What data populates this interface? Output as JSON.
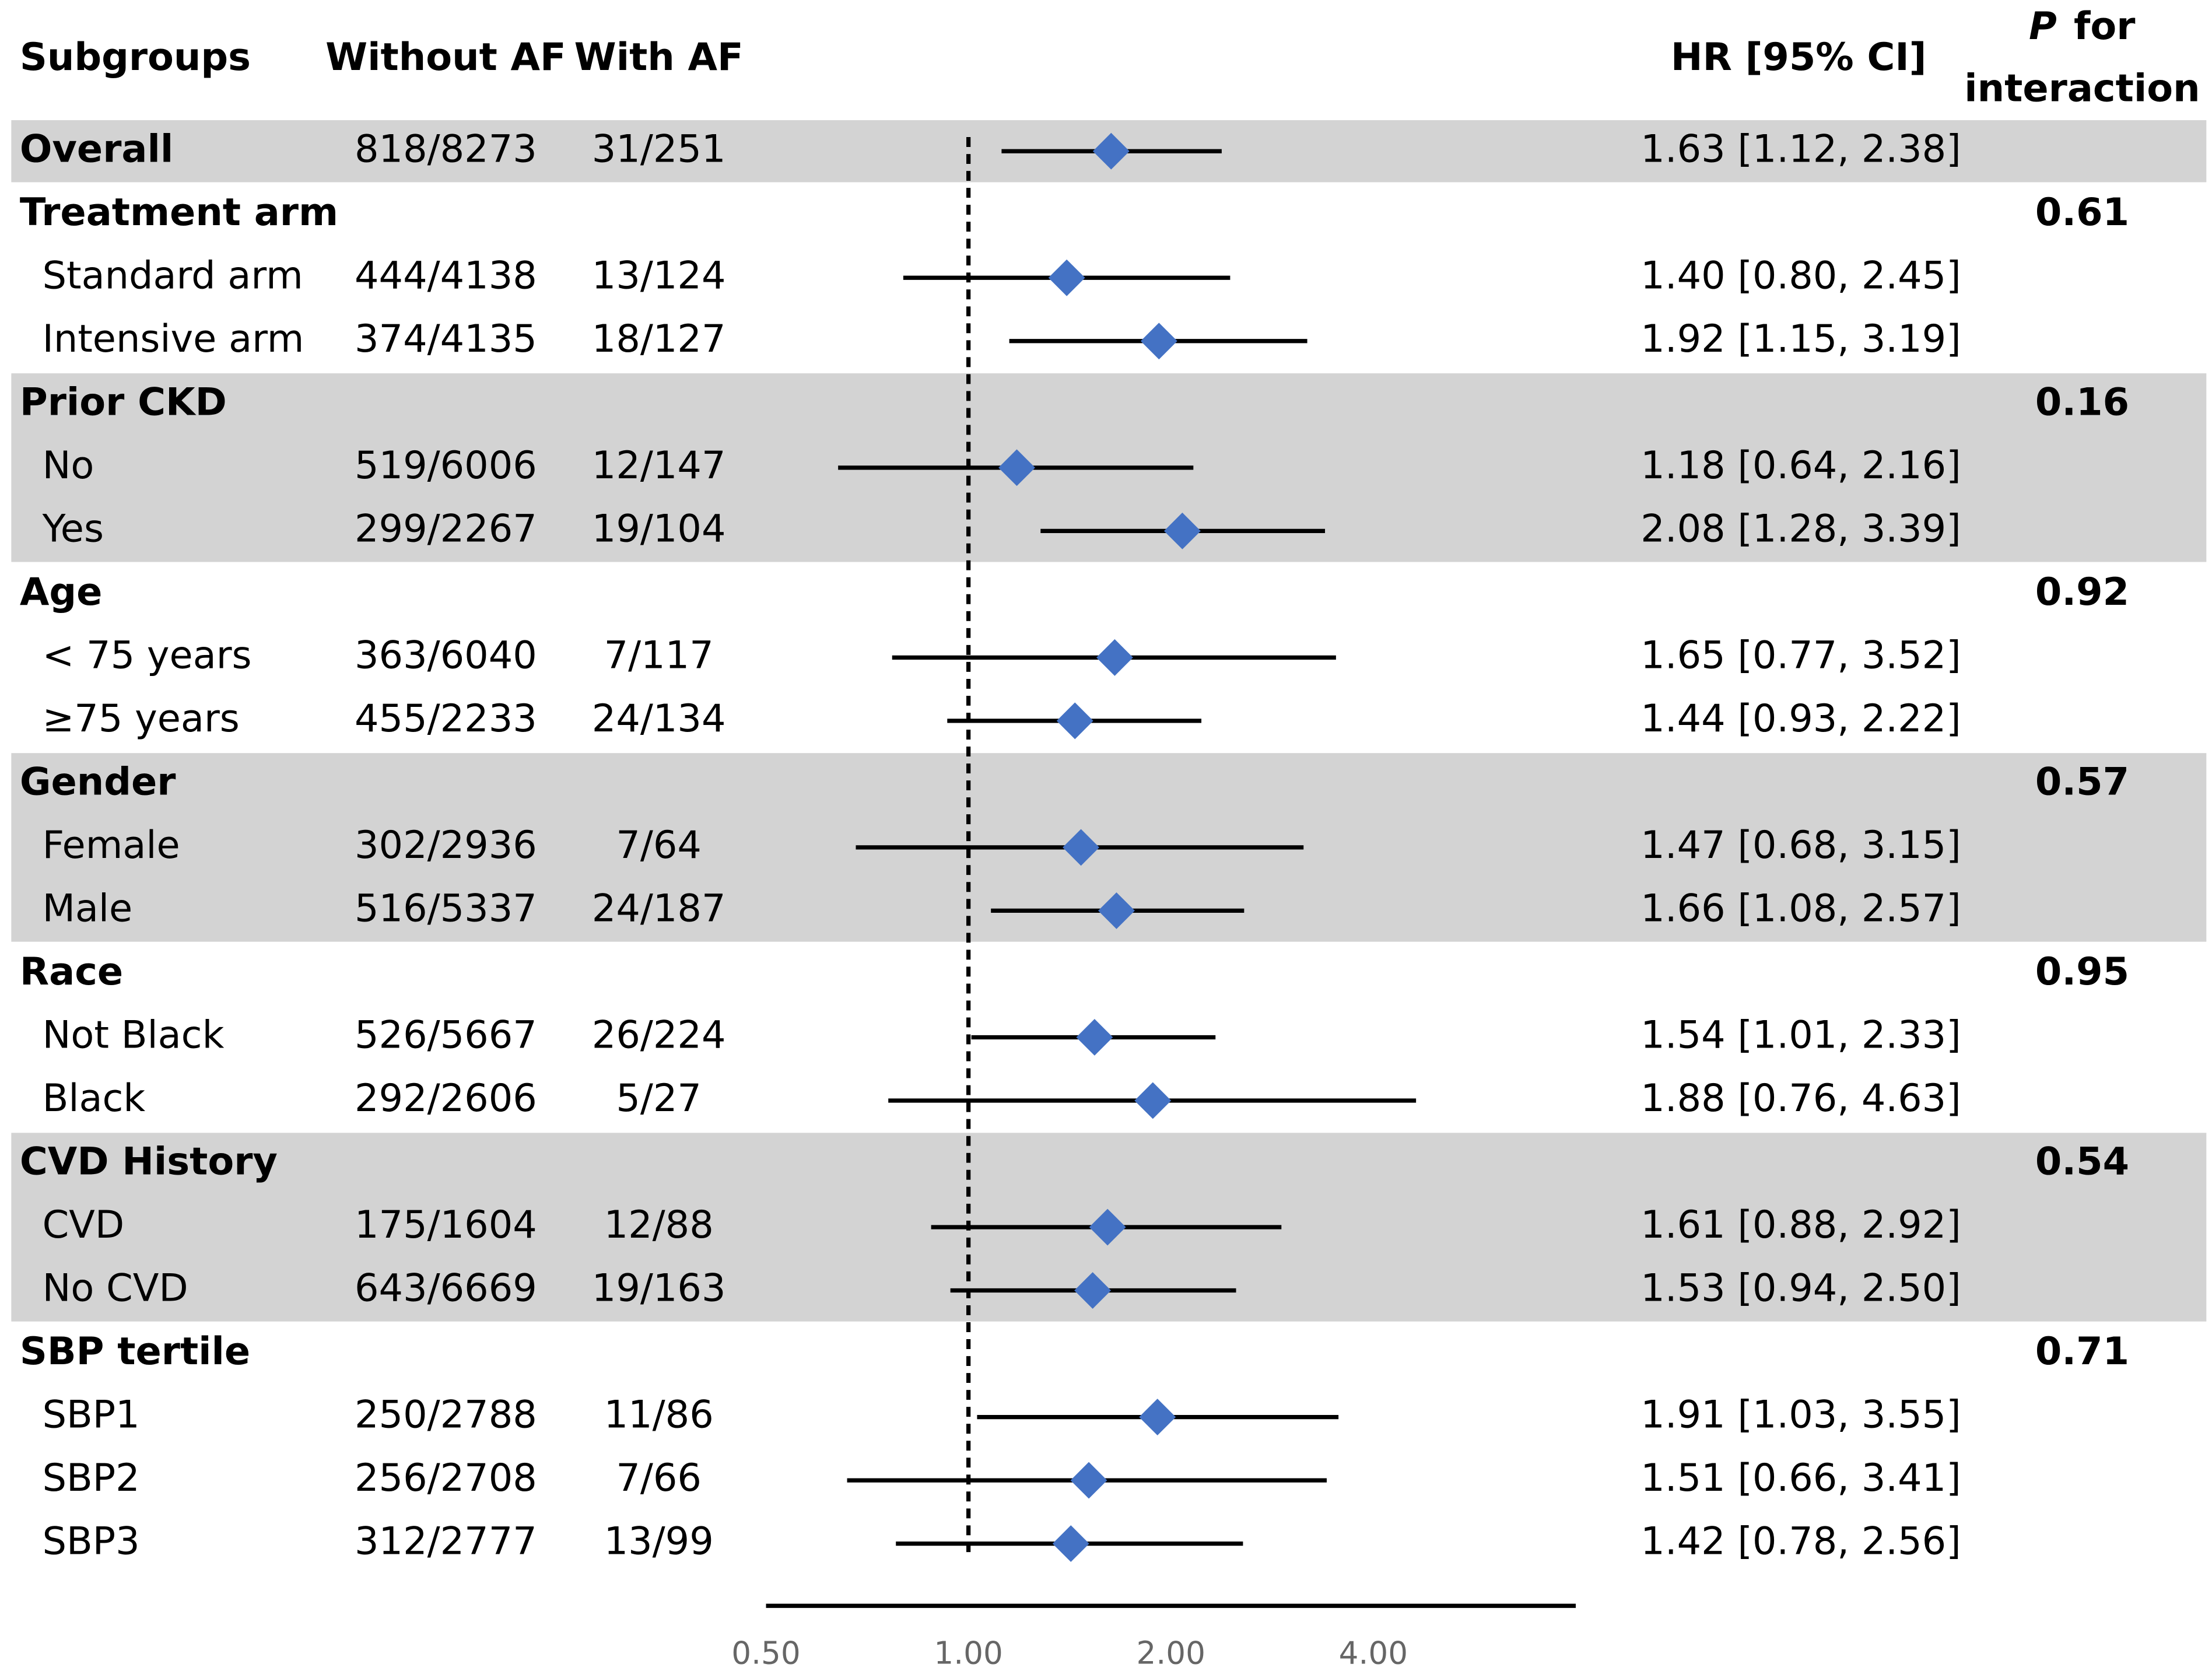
{
  "chart_data": {
    "type": "forest",
    "headers": {
      "subgroups": "Subgroups",
      "without": "Without AF",
      "with": "With AF",
      "hr": "HR [95% CI]",
      "p_symbol": "P",
      "p_line1": "for",
      "p_line2": "interaction"
    },
    "groups": [
      {
        "label": "Overall",
        "without": "818/8273",
        "with": "31/251",
        "hr": 1.63,
        "lo": 1.12,
        "hi": 2.38,
        "hr_label": "1.63 [1.12, 2.38]"
      },
      {
        "label": "Treatment arm",
        "p": 0.61,
        "rows": [
          {
            "label": "Standard arm",
            "without": "444/4138",
            "with": "13/124",
            "hr": 1.4,
            "lo": 0.8,
            "hi": 2.45,
            "hr_label": "1.40 [0.80, 2.45]"
          },
          {
            "label": "Intensive arm",
            "without": "374/4135",
            "with": "18/127",
            "hr": 1.92,
            "lo": 1.15,
            "hi": 3.19,
            "hr_label": "1.92 [1.15, 3.19]"
          }
        ]
      },
      {
        "label": "Prior CKD",
        "p": 0.16,
        "rows": [
          {
            "label": "No",
            "without": "519/6006",
            "with": "12/147",
            "hr": 1.18,
            "lo": 0.64,
            "hi": 2.16,
            "hr_label": "1.18 [0.64, 2.16]"
          },
          {
            "label": "Yes",
            "without": "299/2267",
            "with": "19/104",
            "hr": 2.08,
            "lo": 1.28,
            "hi": 3.39,
            "hr_label": "2.08 [1.28, 3.39]"
          }
        ]
      },
      {
        "label": "Age",
        "p": 0.92,
        "rows": [
          {
            "label": "< 75 years",
            "without": "363/6040",
            "with": "7/117",
            "hr": 1.65,
            "lo": 0.77,
            "hi": 3.52,
            "hr_label": "1.65 [0.77, 3.52]"
          },
          {
            "label": "≥75 years",
            "without": "455/2233",
            "with": "24/134",
            "hr": 1.44,
            "lo": 0.93,
            "hi": 2.22,
            "hr_label": "1.44 [0.93, 2.22]"
          }
        ]
      },
      {
        "label": "Gender",
        "p": 0.57,
        "rows": [
          {
            "label": "Female",
            "without": "302/2936",
            "with": "7/64",
            "hr": 1.47,
            "lo": 0.68,
            "hi": 3.15,
            "hr_label": "1.47 [0.68, 3.15]"
          },
          {
            "label": "Male",
            "without": "516/5337",
            "with": "24/187",
            "hr": 1.66,
            "lo": 1.08,
            "hi": 2.57,
            "hr_label": "1.66 [1.08, 2.57]"
          }
        ]
      },
      {
        "label": "Race",
        "p": 0.95,
        "rows": [
          {
            "label": "Not Black",
            "without": "526/5667",
            "with": "26/224",
            "hr": 1.54,
            "lo": 1.01,
            "hi": 2.33,
            "hr_label": "1.54 [1.01, 2.33]"
          },
          {
            "label": "Black",
            "without": "292/2606",
            "with": "5/27",
            "hr": 1.88,
            "lo": 0.76,
            "hi": 4.63,
            "hr_label": "1.88 [0.76, 4.63]"
          }
        ]
      },
      {
        "label": "CVD History",
        "p": 0.54,
        "rows": [
          {
            "label": "CVD",
            "without": "175/1604",
            "with": "12/88",
            "hr": 1.61,
            "lo": 0.88,
            "hi": 2.92,
            "hr_label": "1.61 [0.88, 2.92]"
          },
          {
            "label": "No CVD",
            "without": "643/6669",
            "with": "19/163",
            "hr": 1.53,
            "lo": 0.94,
            "hi": 2.5,
            "hr_label": "1.53 [0.94, 2.50]"
          }
        ]
      },
      {
        "label": "SBP tertile",
        "p": 0.71,
        "rows": [
          {
            "label": "SBP1",
            "without": "250/2788",
            "with": "11/86",
            "hr": 1.91,
            "lo": 1.03,
            "hi": 3.55,
            "hr_label": "1.91 [1.03, 3.55]"
          },
          {
            "label": "SBP2",
            "without": "256/2708",
            "with": "7/66",
            "hr": 1.51,
            "lo": 0.66,
            "hi": 3.41,
            "hr_label": "1.51 [0.66, 3.41]"
          },
          {
            "label": "SBP3",
            "without": "312/2777",
            "with": "13/99",
            "hr": 1.42,
            "lo": 0.78,
            "hi": 2.56,
            "hr_label": "1.42 [0.78, 2.56]"
          }
        ]
      }
    ],
    "xlim": [
      0.5,
      8
    ],
    "log_x": true,
    "reference": 1,
    "xticks": [
      {
        "value": 0.5,
        "label": "0.50"
      },
      {
        "value": 1,
        "label": "1.00"
      },
      {
        "value": 2,
        "label": "2.00"
      },
      {
        "value": 4,
        "label": "4.00"
      }
    ],
    "color": "#4472c4",
    "band_color": "#d3d3d3"
  }
}
